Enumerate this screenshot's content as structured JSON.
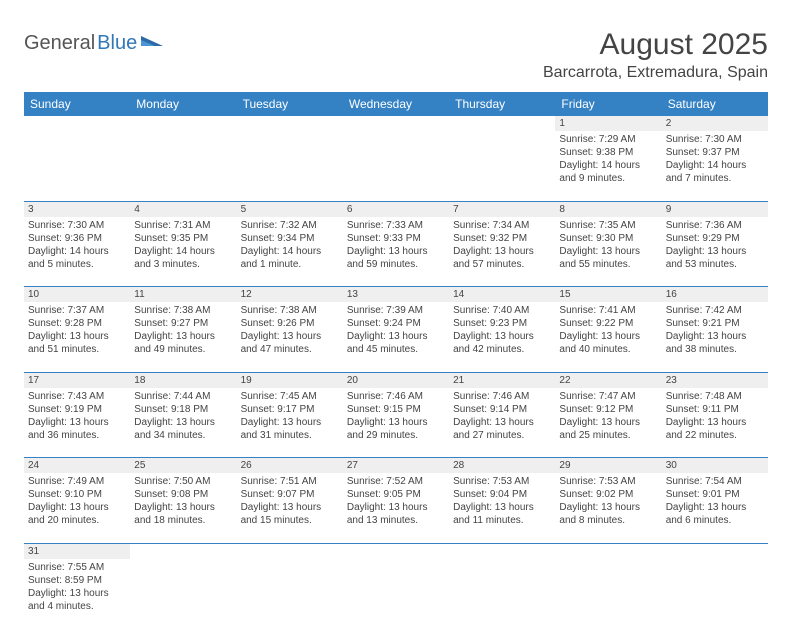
{
  "logo": {
    "general": "General",
    "blue": "Blue"
  },
  "title": "August 2025",
  "location": "Barcarrota, Extremadura, Spain",
  "headerColors": {
    "bg": "#3481c4",
    "text": "#ffffff",
    "border": "#3481c4",
    "daybg": "#efefef"
  },
  "weekdays": [
    "Sunday",
    "Monday",
    "Tuesday",
    "Wednesday",
    "Thursday",
    "Friday",
    "Saturday"
  ],
  "weeks": [
    {
      "nums": [
        "",
        "",
        "",
        "",
        "",
        "1",
        "2"
      ],
      "cells": [
        null,
        null,
        null,
        null,
        null,
        {
          "sr": "Sunrise: 7:29 AM",
          "ss": "Sunset: 9:38 PM",
          "dl": "Daylight: 14 hours and 9 minutes."
        },
        {
          "sr": "Sunrise: 7:30 AM",
          "ss": "Sunset: 9:37 PM",
          "dl": "Daylight: 14 hours and 7 minutes."
        }
      ]
    },
    {
      "nums": [
        "3",
        "4",
        "5",
        "6",
        "7",
        "8",
        "9"
      ],
      "cells": [
        {
          "sr": "Sunrise: 7:30 AM",
          "ss": "Sunset: 9:36 PM",
          "dl": "Daylight: 14 hours and 5 minutes."
        },
        {
          "sr": "Sunrise: 7:31 AM",
          "ss": "Sunset: 9:35 PM",
          "dl": "Daylight: 14 hours and 3 minutes."
        },
        {
          "sr": "Sunrise: 7:32 AM",
          "ss": "Sunset: 9:34 PM",
          "dl": "Daylight: 14 hours and 1 minute."
        },
        {
          "sr": "Sunrise: 7:33 AM",
          "ss": "Sunset: 9:33 PM",
          "dl": "Daylight: 13 hours and 59 minutes."
        },
        {
          "sr": "Sunrise: 7:34 AM",
          "ss": "Sunset: 9:32 PM",
          "dl": "Daylight: 13 hours and 57 minutes."
        },
        {
          "sr": "Sunrise: 7:35 AM",
          "ss": "Sunset: 9:30 PM",
          "dl": "Daylight: 13 hours and 55 minutes."
        },
        {
          "sr": "Sunrise: 7:36 AM",
          "ss": "Sunset: 9:29 PM",
          "dl": "Daylight: 13 hours and 53 minutes."
        }
      ]
    },
    {
      "nums": [
        "10",
        "11",
        "12",
        "13",
        "14",
        "15",
        "16"
      ],
      "cells": [
        {
          "sr": "Sunrise: 7:37 AM",
          "ss": "Sunset: 9:28 PM",
          "dl": "Daylight: 13 hours and 51 minutes."
        },
        {
          "sr": "Sunrise: 7:38 AM",
          "ss": "Sunset: 9:27 PM",
          "dl": "Daylight: 13 hours and 49 minutes."
        },
        {
          "sr": "Sunrise: 7:38 AM",
          "ss": "Sunset: 9:26 PM",
          "dl": "Daylight: 13 hours and 47 minutes."
        },
        {
          "sr": "Sunrise: 7:39 AM",
          "ss": "Sunset: 9:24 PM",
          "dl": "Daylight: 13 hours and 45 minutes."
        },
        {
          "sr": "Sunrise: 7:40 AM",
          "ss": "Sunset: 9:23 PM",
          "dl": "Daylight: 13 hours and 42 minutes."
        },
        {
          "sr": "Sunrise: 7:41 AM",
          "ss": "Sunset: 9:22 PM",
          "dl": "Daylight: 13 hours and 40 minutes."
        },
        {
          "sr": "Sunrise: 7:42 AM",
          "ss": "Sunset: 9:21 PM",
          "dl": "Daylight: 13 hours and 38 minutes."
        }
      ]
    },
    {
      "nums": [
        "17",
        "18",
        "19",
        "20",
        "21",
        "22",
        "23"
      ],
      "cells": [
        {
          "sr": "Sunrise: 7:43 AM",
          "ss": "Sunset: 9:19 PM",
          "dl": "Daylight: 13 hours and 36 minutes."
        },
        {
          "sr": "Sunrise: 7:44 AM",
          "ss": "Sunset: 9:18 PM",
          "dl": "Daylight: 13 hours and 34 minutes."
        },
        {
          "sr": "Sunrise: 7:45 AM",
          "ss": "Sunset: 9:17 PM",
          "dl": "Daylight: 13 hours and 31 minutes."
        },
        {
          "sr": "Sunrise: 7:46 AM",
          "ss": "Sunset: 9:15 PM",
          "dl": "Daylight: 13 hours and 29 minutes."
        },
        {
          "sr": "Sunrise: 7:46 AM",
          "ss": "Sunset: 9:14 PM",
          "dl": "Daylight: 13 hours and 27 minutes."
        },
        {
          "sr": "Sunrise: 7:47 AM",
          "ss": "Sunset: 9:12 PM",
          "dl": "Daylight: 13 hours and 25 minutes."
        },
        {
          "sr": "Sunrise: 7:48 AM",
          "ss": "Sunset: 9:11 PM",
          "dl": "Daylight: 13 hours and 22 minutes."
        }
      ]
    },
    {
      "nums": [
        "24",
        "25",
        "26",
        "27",
        "28",
        "29",
        "30"
      ],
      "cells": [
        {
          "sr": "Sunrise: 7:49 AM",
          "ss": "Sunset: 9:10 PM",
          "dl": "Daylight: 13 hours and 20 minutes."
        },
        {
          "sr": "Sunrise: 7:50 AM",
          "ss": "Sunset: 9:08 PM",
          "dl": "Daylight: 13 hours and 18 minutes."
        },
        {
          "sr": "Sunrise: 7:51 AM",
          "ss": "Sunset: 9:07 PM",
          "dl": "Daylight: 13 hours and 15 minutes."
        },
        {
          "sr": "Sunrise: 7:52 AM",
          "ss": "Sunset: 9:05 PM",
          "dl": "Daylight: 13 hours and 13 minutes."
        },
        {
          "sr": "Sunrise: 7:53 AM",
          "ss": "Sunset: 9:04 PM",
          "dl": "Daylight: 13 hours and 11 minutes."
        },
        {
          "sr": "Sunrise: 7:53 AM",
          "ss": "Sunset: 9:02 PM",
          "dl": "Daylight: 13 hours and 8 minutes."
        },
        {
          "sr": "Sunrise: 7:54 AM",
          "ss": "Sunset: 9:01 PM",
          "dl": "Daylight: 13 hours and 6 minutes."
        }
      ]
    },
    {
      "nums": [
        "31",
        "",
        "",
        "",
        "",
        "",
        ""
      ],
      "cells": [
        {
          "sr": "Sunrise: 7:55 AM",
          "ss": "Sunset: 8:59 PM",
          "dl": "Daylight: 13 hours and 4 minutes."
        },
        null,
        null,
        null,
        null,
        null,
        null
      ]
    }
  ]
}
